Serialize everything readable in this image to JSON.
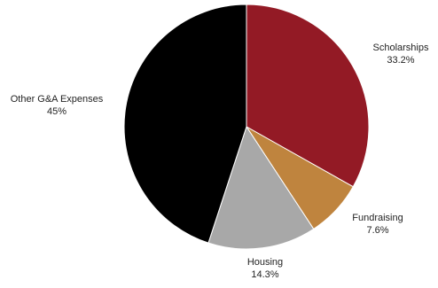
{
  "chart_data": {
    "type": "pie",
    "title": "",
    "slices": [
      {
        "label": "Scholarships",
        "value": 33.2,
        "display": "33.2%",
        "color": "#931a25"
      },
      {
        "label": "Fundraising",
        "value": 7.6,
        "display": "7.6%",
        "color": "#bf843e"
      },
      {
        "label": "Housing",
        "value": 14.3,
        "display": "14.3%",
        "color": "#a8a8a8"
      },
      {
        "label": "Other G&A Expenses",
        "value": 45,
        "display": "45%",
        "color": "#000000"
      }
    ],
    "start_angle_deg": 0,
    "direction": "clockwise",
    "legend": "none",
    "labels": "outside"
  }
}
